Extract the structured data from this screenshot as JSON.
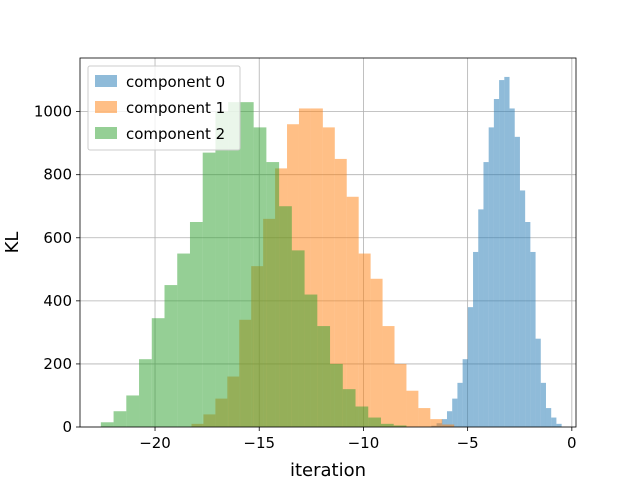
{
  "chart_data": {
    "type": "histogram",
    "xlabel": "iteration",
    "ylabel": "KL",
    "xlim": [
      -23.6,
      0.2
    ],
    "ylim": [
      0,
      1170
    ],
    "xticks": [
      -20,
      -15,
      -10,
      -5,
      0
    ],
    "yticks": [
      0,
      200,
      400,
      600,
      800,
      1000
    ],
    "xtick_labels": [
      "−20",
      "−15",
      "−10",
      "−5",
      "0"
    ],
    "ytick_labels": [
      "0",
      "200",
      "400",
      "600",
      "800",
      "1000"
    ],
    "grid": true,
    "legend_position": "upper-left",
    "series": [
      {
        "name": "component 0",
        "color": "#1f77b4",
        "opacity": 0.5,
        "bin_start": -6.74,
        "bin_width": 0.25,
        "counts": [
          4,
          12,
          25,
          50,
          90,
          140,
          215,
          380,
          555,
          690,
          840,
          950,
          1040,
          1100,
          1110,
          1010,
          920,
          750,
          650,
          555,
          280,
          140,
          60,
          30,
          10
        ]
      },
      {
        "name": "component 1",
        "color": "#ff7f0e",
        "opacity": 0.5,
        "bin_start": -18.25,
        "bin_width": 0.573,
        "counts": [
          10,
          40,
          90,
          160,
          340,
          510,
          660,
          820,
          960,
          1010,
          1010,
          950,
          850,
          730,
          550,
          470,
          320,
          200,
          115,
          60,
          25,
          8
        ]
      },
      {
        "name": "component 2",
        "color": "#2ca02c",
        "opacity": 0.5,
        "bin_start": -22.6,
        "bin_width": 0.611,
        "counts": [
          15,
          50,
          100,
          215,
          345,
          450,
          550,
          650,
          870,
          1000,
          1030,
          1030,
          950,
          840,
          700,
          560,
          420,
          320,
          200,
          120,
          65,
          30,
          10,
          5
        ]
      }
    ]
  }
}
